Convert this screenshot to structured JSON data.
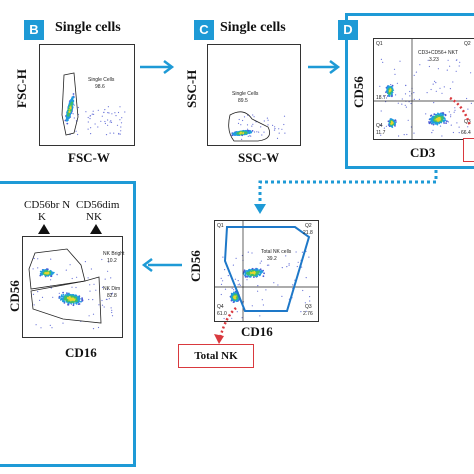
{
  "panels": {
    "B": {
      "badge": "B",
      "title": "Single cells",
      "xlabel": "FSC-W",
      "ylabel": "FSC-H",
      "gate_label": "Single Cells",
      "gate_value": "98.6"
    },
    "C": {
      "badge": "C",
      "title": "Single cells",
      "xlabel": "SSC-W",
      "ylabel": "SSC-H",
      "gate_label": "Single Cells",
      "gate_value": "89.5"
    },
    "D": {
      "badge": "D",
      "xlabel": "CD3",
      "ylabel": "CD56",
      "q1": "Q1",
      "q1_value": "18.7",
      "nkt_label": "CD3+CD56+ NKT",
      "nkt_value": "3.23",
      "q2": "Q2",
      "q3": "Q3",
      "q3_value": "66.4",
      "q4": "Q4",
      "q4_value": "11.7"
    },
    "total_nk": {
      "xlabel": "CD16",
      "ylabel": "CD56",
      "q1": "Q1",
      "gate_label": "Total NK cells",
      "gate_value": "39.2",
      "q2": "Q2",
      "q2_value": "21.8",
      "q3": "Q3",
      "q3_value": "2.76",
      "q4": "Q4",
      "q4_value": "61.0",
      "tag": "Total NK"
    },
    "subsets": {
      "xlabel": "CD16",
      "ylabel": "CD56",
      "bright_title": "CD56br N\nK",
      "dim_title": "CD56dim\nNK",
      "bright_label": "NK Bright",
      "bright_value": "10.2",
      "dim_label": "NK Dim",
      "dim_value": "82.8"
    }
  },
  "colors": {
    "accent": "#1e9ad6",
    "tag_border": "#d9393e",
    "dot_arrow": "#d9393e"
  }
}
